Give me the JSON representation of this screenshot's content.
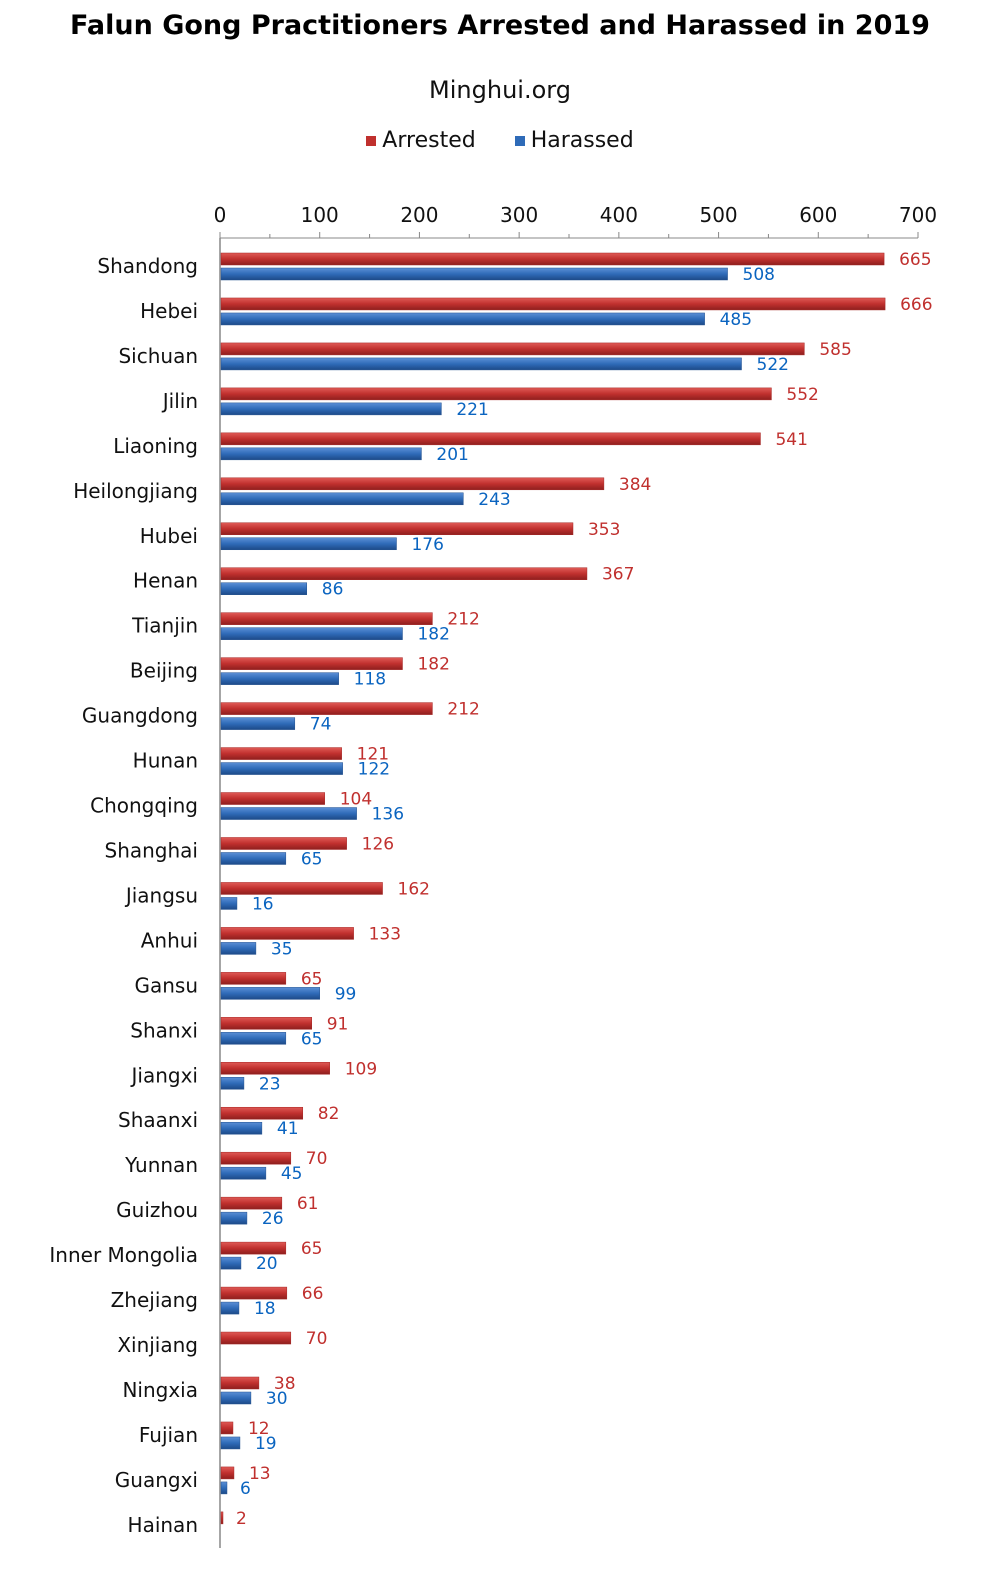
{
  "chart_data": {
    "type": "bar",
    "orientation": "horizontal",
    "title": "Falun Gong Practitioners Arrested and Harassed in 2019",
    "subtitle": "Minghui.org",
    "xlabel": "",
    "ylabel": "",
    "xlim": [
      0,
      700
    ],
    "x_ticks": [
      "0",
      "100",
      "200",
      "300",
      "400",
      "500",
      "600",
      "700"
    ],
    "legend_position": "top",
    "categories": [
      "Shandong",
      "Hebei",
      "Sichuan",
      "Jilin",
      "Liaoning",
      "Heilongjiang",
      "Hubei",
      "Henan",
      "Tianjin",
      "Beijing",
      "Guangdong",
      "Hunan",
      "Chongqing",
      "Shanghai",
      "Jiangsu",
      "Anhui",
      "Gansu",
      "Shanxi",
      "Jiangxi",
      "Shaanxi",
      "Yunnan",
      "Guizhou",
      "Inner Mongolia",
      "Zhejiang",
      "Xinjiang",
      "Ningxia",
      "Fujian",
      "Guangxi",
      "Hainan"
    ],
    "series": [
      {
        "name": "Arrested",
        "color": "#c0302e",
        "label_color": "#c0302e",
        "values": [
          665,
          666,
          585,
          552,
          541,
          384,
          353,
          367,
          212,
          182,
          212,
          121,
          104,
          126,
          162,
          133,
          65,
          91,
          109,
          82,
          70,
          61,
          65,
          66,
          70,
          38,
          12,
          13,
          2
        ]
      },
      {
        "name": "Harassed",
        "color": "#2f6bb8",
        "label_color": "#0a64c0",
        "values": [
          508,
          485,
          522,
          221,
          201,
          243,
          176,
          86,
          182,
          118,
          74,
          122,
          136,
          65,
          16,
          35,
          99,
          65,
          23,
          41,
          45,
          26,
          20,
          18,
          null,
          30,
          19,
          6,
          null
        ]
      }
    ]
  }
}
